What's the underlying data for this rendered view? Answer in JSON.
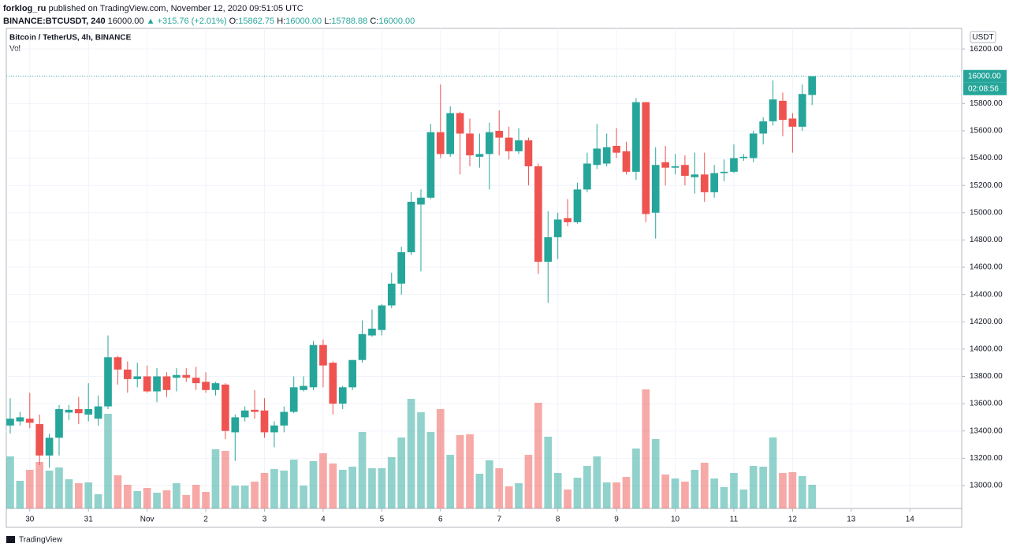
{
  "header": {
    "user": "forklog_ru",
    "published": "published on TradingView.com, November 12, 2020 09:51:05 UTC",
    "symbol": "BINANCE:BTCUSDT, 240",
    "last": "16000.00",
    "change": "▲ +315.76 (+2.01%)",
    "ohlc": [
      [
        "O:",
        "15862.75"
      ],
      [
        "H:",
        "16000.00"
      ],
      [
        "L:",
        "15788.88"
      ],
      [
        "C:",
        "16000.00"
      ]
    ]
  },
  "footer": "TradingView",
  "chart_data": {
    "type": "candlestick",
    "title": "Bitcoin / TetherUS, 4h, BINANCE",
    "volume_label": "Vol",
    "axis_unit": "USDT",
    "up_color": "#26a69a",
    "down_color": "#ef5350",
    "grid": true,
    "last_price": {
      "value": 16000,
      "label": "16000.00"
    },
    "countdown": "02:08:56",
    "x": [
      0,
      1,
      2,
      3,
      4,
      5,
      6,
      7,
      8,
      9,
      10,
      11,
      12,
      13,
      14,
      15,
      16,
      17,
      18,
      19,
      20,
      21,
      22,
      23,
      24,
      25,
      26,
      27,
      28,
      29,
      30,
      31,
      32,
      33,
      34,
      35,
      36,
      37,
      38,
      39,
      40,
      41,
      42,
      43,
      44,
      45,
      46,
      47,
      48,
      49,
      50,
      51,
      52,
      53,
      54,
      55,
      56,
      57,
      58,
      59,
      60,
      61,
      62,
      63,
      64,
      65,
      66,
      67,
      68,
      69,
      70,
      71,
      72,
      73,
      74,
      75,
      76,
      77,
      78,
      79,
      80,
      81,
      82
    ],
    "xlim": [
      -0.4,
      97.3
    ],
    "xticks": [
      {
        "value": 2,
        "label": "30"
      },
      {
        "value": 8,
        "label": "31"
      },
      {
        "value": 14,
        "label": "Nov"
      },
      {
        "value": 20,
        "label": "2"
      },
      {
        "value": 26,
        "label": "3"
      },
      {
        "value": 32,
        "label": "4"
      },
      {
        "value": 38,
        "label": "5"
      },
      {
        "value": 44,
        "label": "6"
      },
      {
        "value": 50,
        "label": "7"
      },
      {
        "value": 56,
        "label": "8"
      },
      {
        "value": 62,
        "label": "9"
      },
      {
        "value": 68,
        "label": "10"
      },
      {
        "value": 74,
        "label": "11"
      },
      {
        "value": 80,
        "label": "12"
      },
      {
        "value": 86,
        "label": "13"
      },
      {
        "value": 92,
        "label": "14"
      }
    ],
    "ylim": [
      12832,
      16351
    ],
    "yticks": [
      {
        "value": 13000,
        "label": "13000.00"
      },
      {
        "value": 13200,
        "label": "13200.00"
      },
      {
        "value": 13400,
        "label": "13400.00"
      },
      {
        "value": 13600,
        "label": "13600.00"
      },
      {
        "value": 13800,
        "label": "13800.00"
      },
      {
        "value": 14000,
        "label": "14000.00"
      },
      {
        "value": 14200,
        "label": "14200.00"
      },
      {
        "value": 14400,
        "label": "14400.00"
      },
      {
        "value": 14600,
        "label": "14600.00"
      },
      {
        "value": 14800,
        "label": "14800.00"
      },
      {
        "value": 15000,
        "label": "15000.00"
      },
      {
        "value": 15200,
        "label": "15200.00"
      },
      {
        "value": 15400,
        "label": "15400.00"
      },
      {
        "value": 15600,
        "label": "15600.00"
      },
      {
        "value": 15800,
        "label": "15800.00"
      },
      {
        "value": 16200,
        "label": "16200.00"
      }
    ],
    "open": [
      13440,
      13470,
      13490,
      13450,
      13220,
      13350,
      13535,
      13560,
      13520,
      13490,
      13580,
      13940,
      13850,
      13780,
      13800,
      13690,
      13800,
      13790,
      13810,
      13790,
      13760,
      13700,
      13740,
      13390,
      13500,
      13555,
      13550,
      13390,
      13440,
      13540,
      13700,
      13720,
      14030,
      13900,
      13600,
      13720,
      13920,
      14100,
      14140,
      14320,
      14480,
      14710,
      15060,
      15110,
      15590,
      15430,
      15730,
      15580,
      15410,
      15430,
      15600,
      15550,
      15450,
      15530,
      15340,
      14640,
      14820,
      14960,
      14930,
      15170,
      15350,
      15360,
      15490,
      15450,
      15300,
      15810,
      15000,
      15370,
      15330,
      15350,
      15260,
      15280,
      15150,
      15290,
      15300,
      15400,
      15400,
      15580,
      15670,
      15820,
      15690,
      15630,
      15862.75
    ],
    "high": [
      13640,
      13540,
      13680,
      13520,
      13380,
      13590,
      13590,
      13650,
      13750,
      13660,
      14100,
      13950,
      13910,
      13900,
      13880,
      13860,
      13830,
      13860,
      13860,
      13870,
      13830,
      13760,
      13750,
      13520,
      13580,
      13700,
      13640,
      13470,
      13580,
      13800,
      13800,
      14060,
      14070,
      13910,
      13730,
      13920,
      14210,
      14290,
      14330,
      14560,
      14750,
      15150,
      15170,
      15650,
      15940,
      15780,
      15740,
      15690,
      15580,
      15660,
      15750,
      15630,
      15620,
      15550,
      15360,
      15010,
      15000,
      15100,
      15220,
      15440,
      15650,
      15580,
      15620,
      15520,
      15840,
      15810,
      15480,
      15490,
      15430,
      15420,
      15440,
      15440,
      15350,
      15390,
      15500,
      15430,
      15600,
      15700,
      15970,
      15880,
      15730,
      15940,
      16000
    ],
    "low": [
      13380,
      13440,
      13420,
      13150,
      13130,
      13220,
      13480,
      13450,
      13470,
      13440,
      13560,
      13740,
      13680,
      13720,
      13680,
      13610,
      13650,
      13690,
      13760,
      13700,
      13680,
      13660,
      13340,
      13180,
      13470,
      13490,
      13350,
      13280,
      13390,
      13530,
      13690,
      13700,
      13720,
      13520,
      13560,
      13700,
      13900,
      14090,
      14100,
      14300,
      14400,
      14690,
      14570,
      15100,
      15400,
      15410,
      15280,
      15340,
      15330,
      15170,
      15420,
      15390,
      15430,
      15200,
      14550,
      14340,
      14660,
      14900,
      14920,
      15150,
      15320,
      15340,
      15400,
      15280,
      15240,
      14930,
      14810,
      15200,
      15280,
      15200,
      15140,
      15080,
      15110,
      15230,
      15290,
      15380,
      15370,
      15500,
      15640,
      15560,
      15440,
      15600,
      15788.88
    ],
    "close": [
      13490,
      13500,
      13460,
      13220,
      13350,
      13560,
      13555,
      13530,
      13560,
      13580,
      13940,
      13850,
      13780,
      13800,
      13690,
      13800,
      13700,
      13810,
      13790,
      13750,
      13700,
      13750,
      13400,
      13500,
      13550,
      13540,
      13390,
      13440,
      13540,
      13720,
      13730,
      14030,
      13880,
      13600,
      13720,
      13920,
      14110,
      14150,
      14320,
      14480,
      14710,
      15080,
      15110,
      15590,
      15430,
      15730,
      15580,
      15420,
      15430,
      15590,
      15550,
      15450,
      15530,
      15340,
      14640,
      14820,
      14950,
      14930,
      15170,
      15360,
      15470,
      15480,
      15440,
      15300,
      15810,
      14990,
      15350,
      15330,
      15340,
      15270,
      15280,
      15150,
      15290,
      15300,
      15400,
      15410,
      15580,
      15670,
      15830,
      15680,
      15630,
      15870,
      16000
    ],
    "volume": [
      66,
      35,
      49,
      59,
      48,
      52,
      37,
      32,
      33,
      18,
      120,
      42,
      30,
      22,
      26,
      20,
      23,
      32,
      17,
      30,
      21,
      75,
      73,
      29,
      29,
      34,
      45,
      50,
      48,
      62,
      29,
      60,
      70,
      57,
      49,
      53,
      97,
      51,
      51,
      65,
      90,
      139,
      122,
      97,
      126,
      68,
      93,
      94,
      44,
      61,
      51,
      28,
      32,
      68,
      134,
      91,
      45,
      24,
      39,
      54,
      66,
      33,
      33,
      40,
      76,
      151,
      88,
      43,
      38,
      34,
      49,
      58,
      38,
      27,
      45,
      24,
      54,
      53,
      90,
      45,
      46,
      41,
      30
    ]
  }
}
